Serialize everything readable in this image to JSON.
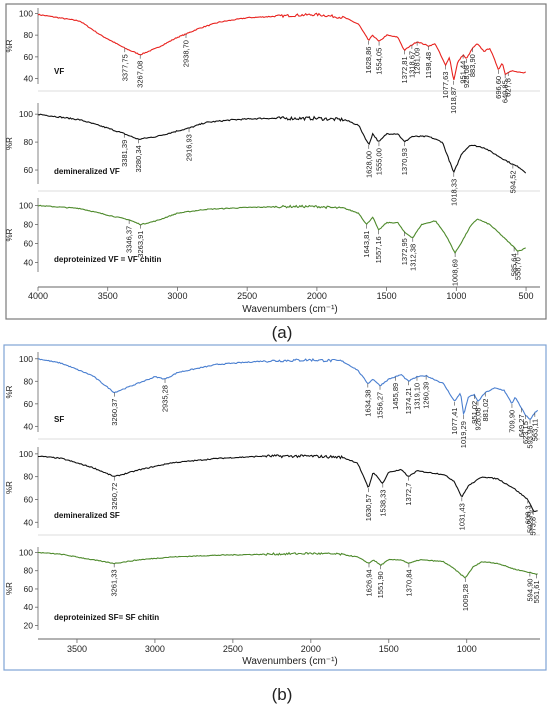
{
  "colors": {
    "red": "#e8231f",
    "black": "#111111",
    "green": "#4e8a2c",
    "blue": "#4a7fd0",
    "frame": "#7a7a7a",
    "frame_b": "#7fa3d4"
  },
  "panel_a": {
    "caption": "(a)",
    "xlabel": "Wavenumbers (cm⁻¹)",
    "xlim": [
      4000,
      400
    ],
    "xticks": [
      "4000",
      "3500",
      "3000",
      "2500",
      "2000",
      "1500",
      "1000",
      "500"
    ],
    "ylabel": "%R"
  },
  "panel_b": {
    "caption": "(b)",
    "xlabel": "Wavenumbers (cm⁻¹)",
    "xlim": [
      3750,
      530
    ],
    "xticks": [
      "3500",
      "3000",
      "2500",
      "2000",
      "1500",
      "1000"
    ],
    "ylabel": "%R"
  },
  "chart_data": [
    {
      "type": "line",
      "panel": "a",
      "xlabel": "Wavenumbers (cm⁻¹)",
      "xlim": [
        4000,
        400
      ],
      "series": [
        {
          "name": "VF",
          "color": "#e8231f",
          "yticks": [
            "100",
            "80",
            "60",
            "40"
          ],
          "ylim": [
            35,
            105
          ],
          "points": [
            [
              4000,
              99
            ],
            [
              3700,
              93
            ],
            [
              3550,
              80
            ],
            [
              3377.75,
              68
            ],
            [
              3267.08,
              62
            ],
            [
              3150,
              68
            ],
            [
              3000,
              78
            ],
            [
              2938.7,
              81
            ],
            [
              2850,
              86
            ],
            [
              2700,
              92
            ],
            [
              2500,
              96
            ],
            [
              2200,
              98
            ],
            [
              2000,
              99
            ],
            [
              1800,
              96
            ],
            [
              1700,
              90
            ],
            [
              1628.86,
              75
            ],
            [
              1600,
              80
            ],
            [
              1554.05,
              74
            ],
            [
              1500,
              80
            ],
            [
              1420,
              78
            ],
            [
              1372.81,
              66
            ],
            [
              1318.67,
              71
            ],
            [
              1281.09,
              74
            ],
            [
              1198.48,
              70
            ],
            [
              1150,
              72
            ],
            [
              1077.63,
              52
            ],
            [
              1050,
              60
            ],
            [
              1018.87,
              38
            ],
            [
              990,
              55
            ],
            [
              951.44,
              62
            ],
            [
              928.08,
              58
            ],
            [
              883.9,
              68
            ],
            [
              850,
              72
            ],
            [
              800,
              65
            ],
            [
              760,
              68
            ],
            [
              696.6,
              48
            ],
            [
              670,
              55
            ],
            [
              649.85,
              44
            ],
            [
              627.8,
              46
            ],
            [
              600,
              47
            ],
            [
              520,
              45
            ],
            [
              500,
              46
            ]
          ],
          "peaks": [
            "3377,75",
            "3267,08",
            "2938,70",
            "1628,86",
            "1554,05",
            "1372,81",
            "1318,67",
            "1281,09",
            "1198,48",
            "1077,63",
            "1018,87",
            "951,44",
            "928,08",
            "883,90",
            "696,60",
            "649,85",
            "627,8"
          ]
        },
        {
          "name": "demineralized VF",
          "color": "#111111",
          "yticks": [
            "100",
            "80",
            "60"
          ],
          "ylim": [
            50,
            108
          ],
          "points": [
            [
              4000,
              100
            ],
            [
              3700,
              96
            ],
            [
              3500,
              90
            ],
            [
              3381.39,
              86
            ],
            [
              3280.34,
              82
            ],
            [
              3150,
              84
            ],
            [
              3000,
              88
            ],
            [
              2916.93,
              90
            ],
            [
              2800,
              94
            ],
            [
              2600,
              96
            ],
            [
              2400,
              97
            ],
            [
              2000,
              97
            ],
            [
              1800,
              96
            ],
            [
              1700,
              92
            ],
            [
              1628,
              78
            ],
            [
              1600,
              86
            ],
            [
              1555,
              80
            ],
            [
              1500,
              86
            ],
            [
              1420,
              86
            ],
            [
              1370.93,
              80
            ],
            [
              1320,
              84
            ],
            [
              1200,
              84
            ],
            [
              1100,
              80
            ],
            [
              1018.33,
              58
            ],
            [
              960,
              72
            ],
            [
              900,
              78
            ],
            [
              800,
              76
            ],
            [
              700,
              70
            ],
            [
              594.52,
              64
            ],
            [
              550,
              62
            ],
            [
              500,
              58
            ]
          ],
          "peaks": [
            "3381,39",
            "3280,34",
            "2916,93",
            "1628,00",
            "1555,00",
            "1370,93",
            "1018,33",
            "594,52"
          ]
        },
        {
          "name": "deproteinized VF  = VF chitin",
          "color": "#4e8a2c",
          "yticks": [
            "100",
            "80",
            "60",
            "40"
          ],
          "ylim": [
            30,
            108
          ],
          "points": [
            [
              4000,
              100
            ],
            [
              3700,
              97
            ],
            [
              3500,
              90
            ],
            [
              3346.37,
              85
            ],
            [
              3263.91,
              80
            ],
            [
              3150,
              84
            ],
            [
              3000,
              92
            ],
            [
              2800,
              96
            ],
            [
              2500,
              98
            ],
            [
              2200,
              99
            ],
            [
              2000,
              99
            ],
            [
              1800,
              97
            ],
            [
              1700,
              92
            ],
            [
              1643.81,
              80
            ],
            [
              1600,
              88
            ],
            [
              1557.16,
              74
            ],
            [
              1500,
              82
            ],
            [
              1420,
              82
            ],
            [
              1372.95,
              72
            ],
            [
              1312.38,
              66
            ],
            [
              1250,
              80
            ],
            [
              1150,
              84
            ],
            [
              1080,
              70
            ],
            [
              1008.69,
              50
            ],
            [
              960,
              62
            ],
            [
              900,
              78
            ],
            [
              850,
              86
            ],
            [
              760,
              80
            ],
            [
              700,
              72
            ],
            [
              585.64,
              56
            ],
            [
              558.7,
              52
            ],
            [
              520,
              54
            ],
            [
              500,
              56
            ]
          ],
          "peaks": [
            "3346,37",
            "3263,91",
            "1643,81",
            "1557,16",
            "1372,95",
            "1312,38",
            "1008,69",
            "585,64",
            "558,70"
          ]
        }
      ]
    },
    {
      "type": "line",
      "panel": "b",
      "xlabel": "Wavenumbers (cm⁻¹)",
      "xlim": [
        3750,
        530
      ],
      "series": [
        {
          "name": "SF",
          "color": "#4a7fd0",
          "yticks": [
            "100",
            "80",
            "60",
            "40"
          ],
          "ylim": [
            35,
            106
          ],
          "points": [
            [
              3750,
              100
            ],
            [
              3600,
              96
            ],
            [
              3400,
              85
            ],
            [
              3260.37,
              70
            ],
            [
              3150,
              76
            ],
            [
              3000,
              84
            ],
            [
              2935.28,
              82
            ],
            [
              2850,
              88
            ],
            [
              2600,
              95
            ],
            [
              2300,
              98
            ],
            [
              2000,
              99
            ],
            [
              1800,
              98
            ],
            [
              1700,
              90
            ],
            [
              1634.38,
              78
            ],
            [
              1600,
              82
            ],
            [
              1556.27,
              76
            ],
            [
              1500,
              82
            ],
            [
              1455.89,
              84
            ],
            [
              1420,
              86
            ],
            [
              1374.21,
              80
            ],
            [
              1319.1,
              84
            ],
            [
              1260.39,
              85
            ],
            [
              1150,
              78
            ],
            [
              1077.41,
              62
            ],
            [
              1040,
              70
            ],
            [
              1019.29,
              50
            ],
            [
              990,
              66
            ],
            [
              951.02,
              68
            ],
            [
              928.08,
              62
            ],
            [
              881.02,
              70
            ],
            [
              820,
              74
            ],
            [
              760,
              72
            ],
            [
              709.9,
              60
            ],
            [
              690,
              66
            ],
            [
              649.27,
              56
            ],
            [
              623.15,
              50
            ],
            [
              593.96,
              46
            ],
            [
              563.11,
              52
            ],
            [
              540,
              55
            ]
          ],
          "peaks": [
            "3260,37",
            "2935,28",
            "1634,38",
            "1556,27",
            "1455,89",
            "1374,21",
            "1319,10",
            "1260,39",
            "1077,41",
            "1019,29",
            "951,02",
            "928,08",
            "881,02",
            "709,90",
            "649,27",
            "623,15",
            "593,96",
            "563,11"
          ]
        },
        {
          "name": "demineralized SF",
          "color": "#111111",
          "yticks": [
            "100",
            "80",
            "60",
            "40"
          ],
          "ylim": [
            35,
            106
          ],
          "points": [
            [
              3750,
              98
            ],
            [
              3600,
              96
            ],
            [
              3400,
              88
            ],
            [
              3260.72,
              80
            ],
            [
              3100,
              86
            ],
            [
              2900,
              92
            ],
            [
              2600,
              96
            ],
            [
              2300,
              98
            ],
            [
              2000,
              98
            ],
            [
              1800,
              97
            ],
            [
              1700,
              92
            ],
            [
              1630.57,
              70
            ],
            [
              1600,
              84
            ],
            [
              1538.33,
              74
            ],
            [
              1500,
              84
            ],
            [
              1420,
              86
            ],
            [
              1372.7,
              80
            ],
            [
              1320,
              85
            ],
            [
              1150,
              82
            ],
            [
              1080,
              76
            ],
            [
              1031.43,
              62
            ],
            [
              990,
              72
            ],
            [
              900,
              80
            ],
            [
              800,
              78
            ],
            [
              700,
              70
            ],
            [
              608.3,
              60
            ],
            [
              592.71,
              56
            ],
            [
              573.8,
              50
            ],
            [
              540,
              50
            ]
          ],
          "peaks": [
            "3260,72",
            "1630,57",
            "1538,33",
            "1372,7",
            "1031,43",
            "608,3",
            "592,71",
            "573,8"
          ]
        },
        {
          "name": "deproteinized SF= SF chitin",
          "color": "#4e8a2c",
          "yticks": [
            "100",
            "80",
            "60",
            "40",
            "20"
          ],
          "ylim": [
            15,
            106
          ],
          "points": [
            [
              3750,
              100
            ],
            [
              3600,
              98
            ],
            [
              3400,
              92
            ],
            [
              3261.33,
              88
            ],
            [
              3100,
              92
            ],
            [
              2900,
              95
            ],
            [
              2600,
              97
            ],
            [
              2300,
              98
            ],
            [
              2000,
              99
            ],
            [
              1800,
              98
            ],
            [
              1700,
              95
            ],
            [
              1626.94,
              88
            ],
            [
              1600,
              92
            ],
            [
              1551.9,
              86
            ],
            [
              1500,
              92
            ],
            [
              1420,
              92
            ],
            [
              1370.84,
              88
            ],
            [
              1300,
              92
            ],
            [
              1150,
              90
            ],
            [
              1080,
              82
            ],
            [
              1009.28,
              72
            ],
            [
              960,
              84
            ],
            [
              900,
              90
            ],
            [
              800,
              88
            ],
            [
              700,
              82
            ],
            [
              594.9,
              78
            ],
            [
              551.61,
              76
            ],
            [
              540,
              78
            ]
          ],
          "peaks": [
            "3261,33",
            "1626,94",
            "1551,90",
            "1370,84",
            "1009,28",
            "594,90",
            "551,61"
          ]
        }
      ]
    }
  ]
}
